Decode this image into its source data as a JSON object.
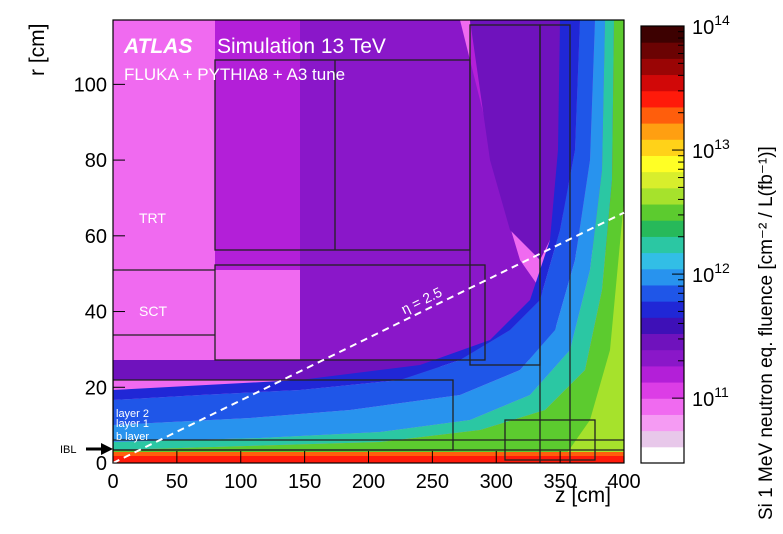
{
  "chart_data": {
    "type": "heatmap",
    "title": "Simulation 13 TeV",
    "experiment_label": "ATLAS",
    "subtitle": "FLUKA + PYTHIA8 + A3 tune",
    "xlabel": "z [cm]",
    "ylabel": "r [cm]",
    "zlabel": "Si 1 MeV neutron eq. fluence [cm⁻² / L(fb⁻¹)]",
    "xlim": [
      0,
      400
    ],
    "ylim": [
      0,
      117
    ],
    "zlim": [
      30000000000.0,
      100000000000000.0
    ],
    "z_log_scale": true,
    "x_ticks": [
      0,
      50,
      100,
      150,
      200,
      250,
      300,
      350,
      400
    ],
    "y_ticks": [
      0,
      20,
      40,
      60,
      80,
      100
    ],
    "z_tick_labels": [
      "10^14",
      "10^13",
      "10^12",
      "10^11"
    ],
    "colorbar_colors": [
      "#ffffff",
      "#e8c8ea",
      "#f59bf3",
      "#f06af0",
      "#dc3de6",
      "#b31fd8",
      "#8a17c9",
      "#6f12bd",
      "#3e10b7",
      "#2027d6",
      "#1f56e8",
      "#2893ee",
      "#32bee6",
      "#2bc7a3",
      "#27b95a",
      "#5ccb2f",
      "#a6e22c",
      "#d8ee2c",
      "#ffff25",
      "#ffd219",
      "#ff9f11",
      "#ff5e0c",
      "#ff1a0a",
      "#d10808",
      "#9a0505",
      "#6b0303",
      "#3d0101"
    ],
    "annotations": {
      "eta_label": "η = 2.5",
      "eta_value": 2.5,
      "detector_labels": [
        "TRT",
        "SCT",
        "layer 2",
        "layer 1",
        "b layer",
        "IBL"
      ]
    },
    "grid": false,
    "legend": "colorbar-right"
  }
}
